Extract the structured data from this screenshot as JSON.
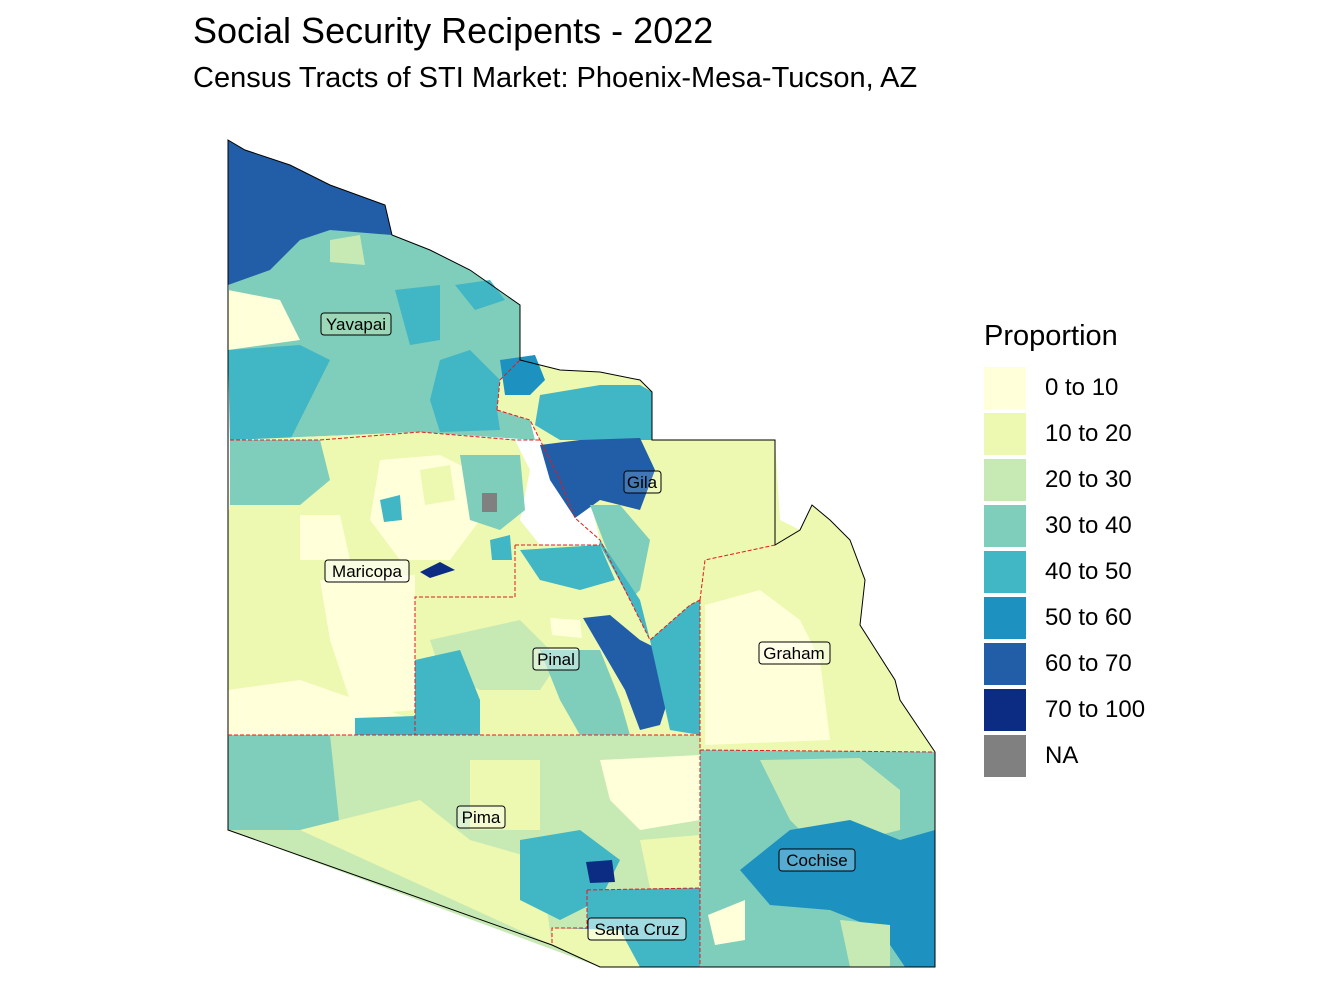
{
  "title": "Social Security Recipents - 2022",
  "subtitle": "Census Tracts of STI Market: Phoenix-Mesa-Tucson, AZ",
  "legend": {
    "title": "Proportion",
    "items": [
      {
        "label": "0 to 10",
        "color": "#FFFFD9"
      },
      {
        "label": "10 to 20",
        "color": "#EDF8B1"
      },
      {
        "label": "20 to 30",
        "color": "#C7E9B4"
      },
      {
        "label": "30 to 40",
        "color": "#7FCDBB"
      },
      {
        "label": "40 to 50",
        "color": "#41B6C4"
      },
      {
        "label": "50 to 60",
        "color": "#1D91C0"
      },
      {
        "label": "60 to 70",
        "color": "#225EA8"
      },
      {
        "label": "70 to 100",
        "color": "#0C2C84"
      },
      {
        "label": "NA",
        "color": "#808080"
      }
    ]
  },
  "counties": [
    {
      "name": "Yavapai",
      "class": "30 to 40"
    },
    {
      "name": "Gila",
      "class": "10 to 20"
    },
    {
      "name": "Maricopa",
      "class": "10 to 20"
    },
    {
      "name": "Pinal",
      "class": "30 to 40"
    },
    {
      "name": "Graham",
      "class": "10 to 20"
    },
    {
      "name": "Pima",
      "class": "20 to 30"
    },
    {
      "name": "Cochise",
      "class": "30 to 40"
    },
    {
      "name": "Santa Cruz",
      "class": "40 to 50"
    }
  ],
  "county_boundary_color": "#E41A1C"
}
